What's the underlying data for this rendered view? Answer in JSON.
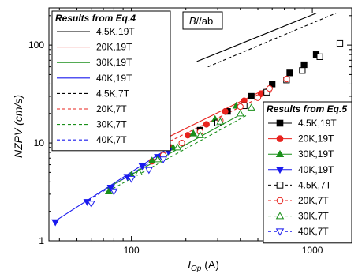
{
  "chart_data": {
    "type": "scatter",
    "xlabel_main": "I",
    "xlabel_sub": "Op",
    "xlabel_unit": " (A)",
    "ylabel": "NZPV (cm/s)",
    "xscale": "log",
    "yscale": "log",
    "xlim": [
      35,
      1650
    ],
    "ylim": [
      1,
      240
    ],
    "x_ticks": [
      100,
      1000
    ],
    "x_tick_labels": [
      "100",
      "1000"
    ],
    "y_ticks": [
      1,
      10,
      100
    ],
    "y_tick_labels": [
      "1",
      "10",
      "100"
    ],
    "annotation": {
      "main": "B",
      "rest": "//ab"
    },
    "legend_eq4": {
      "title": "Results from Eq.4",
      "placement": "top-left",
      "entries": [
        {
          "label": "4.5K,19T",
          "color": "#000000",
          "dash": "solid"
        },
        {
          "label": "20K,19T",
          "color": "#e8231e",
          "dash": "solid"
        },
        {
          "label": "30K,19T",
          "color": "#1a8f1a",
          "dash": "solid"
        },
        {
          "label": "40K,19T",
          "color": "#1a1aee",
          "dash": "solid"
        },
        {
          "label": "4.5K,7T",
          "color": "#000000",
          "dash": "dashed"
        },
        {
          "label": "20K,7T",
          "color": "#e8231e",
          "dash": "dashed"
        },
        {
          "label": "30K,7T",
          "color": "#1a8f1a",
          "dash": "dashed"
        },
        {
          "label": "40K,7T",
          "color": "#1a1aee",
          "dash": "dashed"
        }
      ]
    },
    "legend_eq5": {
      "title": "Results from Eq.5",
      "placement": "bottom-right",
      "entries": [
        {
          "label": "4.5K,19T",
          "color": "#000000",
          "marker": "square",
          "filled": true
        },
        {
          "label": "20K,19T",
          "color": "#e8231e",
          "marker": "circle",
          "filled": true
        },
        {
          "label": "30K,19T",
          "color": "#1a8f1a",
          "marker": "triangle-up",
          "filled": true
        },
        {
          "label": "40K,19T",
          "color": "#1a1aee",
          "marker": "triangle-down",
          "filled": true
        },
        {
          "label": "4.5K,7T",
          "color": "#000000",
          "marker": "square",
          "filled": false
        },
        {
          "label": "20K,7T",
          "color": "#e8231e",
          "marker": "circle",
          "filled": false
        },
        {
          "label": "30K,7T",
          "color": "#1a8f1a",
          "marker": "triangle-up",
          "filled": false
        },
        {
          "label": "40K,7T",
          "color": "#1a1aee",
          "marker": "triangle-down",
          "filled": false
        }
      ]
    },
    "lines_eq4": [
      {
        "color": "#000000",
        "dash": "solid",
        "x": [
          230,
          1050
        ],
        "y": [
          68,
          212
        ]
      },
      {
        "color": "#000000",
        "dash": "dashed",
        "x": [
          265,
          1350
        ],
        "y": [
          60,
          212
        ]
      },
      {
        "color": "#e8231e",
        "dash": "solid",
        "x": [
          130,
          560
        ],
        "y": [
          9.5,
          36
        ]
      },
      {
        "color": "#e8231e",
        "dash": "dashed",
        "x": [
          135,
          610
        ],
        "y": [
          8.8,
          34
        ]
      },
      {
        "color": "#1a8f1a",
        "dash": "solid",
        "x": [
          72,
          410
        ],
        "y": [
          3.4,
          20
        ]
      },
      {
        "color": "#1a8f1a",
        "dash": "dashed",
        "x": [
          74,
          430
        ],
        "y": [
          3.2,
          19
        ]
      },
      {
        "color": "#1a1aee",
        "dash": "solid",
        "x": [
          38,
          158
        ],
        "y": [
          1.6,
          8.7
        ]
      },
      {
        "color": "#1a1aee",
        "dash": "dashed",
        "x": [
          58,
          155
        ],
        "y": [
          2.6,
          7.9
        ]
      }
    ],
    "series_eq5": [
      {
        "label": "4.5K,19T",
        "x": [
          240,
          340,
          460,
          600,
          750,
          900,
          1050
        ],
        "y": [
          13.5,
          21,
          30,
          40,
          52,
          63,
          80
        ]
      },
      {
        "label": "20K,19T",
        "x": [
          130,
          165,
          205,
          260,
          330,
          420,
          520
        ],
        "y": [
          6.5,
          9,
          12,
          15.5,
          21,
          27,
          32
        ]
      },
      {
        "label": "30K,19T",
        "x": [
          75,
          100,
          130,
          170,
          220,
          290,
          380
        ],
        "y": [
          3.2,
          4.7,
          6.6,
          9,
          12.5,
          17.5,
          24
        ]
      },
      {
        "label": "40K,19T",
        "x": [
          38,
          57,
          77,
          95,
          115,
          140,
          160
        ],
        "y": [
          1.55,
          2.5,
          3.5,
          4.5,
          5.8,
          7.2,
          8.2
        ]
      },
      {
        "label": "4.5K,7T",
        "x": [
          300,
          420,
          560,
          720,
          880,
          1100,
          1420
        ],
        "y": [
          16,
          24,
          33,
          44,
          55,
          76,
          104
        ]
      },
      {
        "label": "20K,7T",
        "x": [
          150,
          190,
          240,
          310,
          400,
          500,
          580,
          720
        ],
        "y": [
          7.5,
          10,
          13,
          17,
          23.5,
          29,
          36,
          45
        ]
      },
      {
        "label": "30K,7T",
        "x": [
          110,
          140,
          180,
          240,
          310,
          400,
          460
        ],
        "y": [
          5,
          6.8,
          9,
          12,
          16.5,
          20,
          23
        ]
      },
      {
        "label": "40K,7T",
        "x": [
          60,
          80,
          100,
          125,
          150
        ],
        "y": [
          2.4,
          3.2,
          4.3,
          5.3,
          6.8
        ]
      }
    ]
  }
}
